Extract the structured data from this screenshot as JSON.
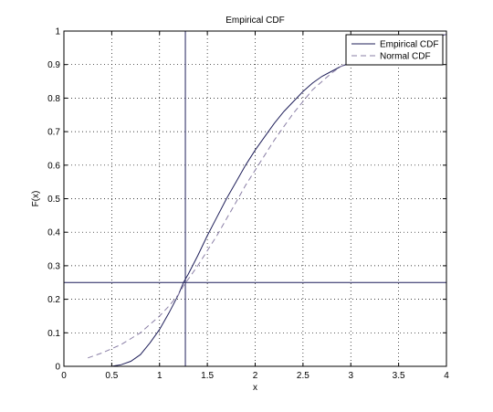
{
  "chart_data": {
    "type": "line",
    "title": "Empirical CDF",
    "xlabel": "x",
    "ylabel": "F(x)",
    "xlim": [
      0,
      4
    ],
    "ylim": [
      0,
      1
    ],
    "grid": true,
    "legend_position": "top-right",
    "x_ticks": [
      "0",
      "0.5",
      "1",
      "1.5",
      "2",
      "2.5",
      "3",
      "3.5",
      "4"
    ],
    "y_ticks": [
      "0",
      "0.1",
      "0.2",
      "0.3",
      "0.4",
      "0.5",
      "0.6",
      "0.7",
      "0.8",
      "0.9",
      "1"
    ],
    "series": [
      {
        "name": "Empirical CDF",
        "style": "solid",
        "color": "#1f1f5a",
        "x": [
          0.5,
          0.6,
          0.7,
          0.8,
          0.9,
          1.0,
          1.1,
          1.2,
          1.25,
          1.3,
          1.4,
          1.5,
          1.6,
          1.7,
          1.8,
          1.9,
          2.0,
          2.1,
          2.2,
          2.3,
          2.4,
          2.5,
          2.6,
          2.7,
          2.8,
          2.9,
          3.0,
          3.2,
          3.4,
          3.6,
          3.8,
          4.0
        ],
        "y": [
          0.0,
          0.005,
          0.015,
          0.035,
          0.07,
          0.11,
          0.16,
          0.215,
          0.25,
          0.275,
          0.33,
          0.39,
          0.445,
          0.5,
          0.55,
          0.6,
          0.645,
          0.685,
          0.725,
          0.76,
          0.79,
          0.82,
          0.845,
          0.865,
          0.88,
          0.895,
          0.905,
          0.925,
          0.945,
          0.96,
          0.975,
          0.99
        ]
      },
      {
        "name": "Normal CDF",
        "style": "dashed",
        "color": "#8a7fa6",
        "x": [
          0.25,
          0.4,
          0.6,
          0.8,
          1.0,
          1.1,
          1.2,
          1.25,
          1.3,
          1.4,
          1.5,
          1.6,
          1.7,
          1.8,
          1.9,
          2.0,
          2.1,
          2.2,
          2.3,
          2.4,
          2.5,
          2.6,
          2.7,
          2.8,
          2.9,
          3.0,
          3.2,
          3.4,
          3.6,
          3.8,
          4.0
        ],
        "y": [
          0.025,
          0.04,
          0.065,
          0.1,
          0.15,
          0.18,
          0.215,
          0.24,
          0.26,
          0.3,
          0.345,
          0.39,
          0.44,
          0.49,
          0.54,
          0.585,
          0.63,
          0.675,
          0.715,
          0.755,
          0.79,
          0.825,
          0.85,
          0.875,
          0.895,
          0.91,
          0.94,
          0.96,
          0.975,
          0.985,
          0.99
        ]
      }
    ],
    "reference_lines": {
      "vertical_x": 1.27,
      "horizontal_y": 0.25
    }
  }
}
